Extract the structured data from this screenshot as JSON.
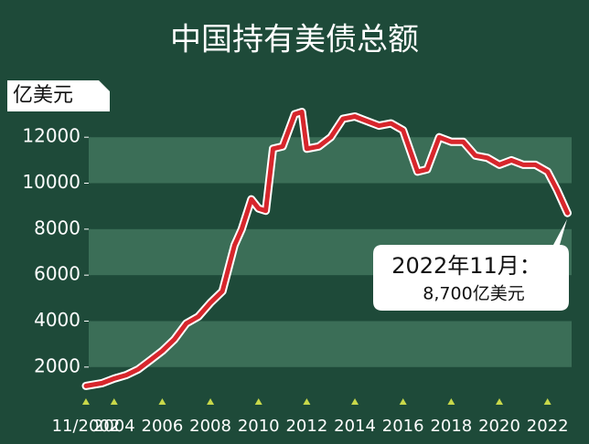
{
  "chart_data": {
    "type": "line",
    "title": "中国持有美债总额",
    "y_label": "亿美元",
    "annotation": {
      "title": "2022年11月：",
      "text": "8,700亿美元"
    },
    "x": [
      2002.83,
      2003.5,
      2004,
      2004.5,
      2005,
      2005.5,
      2006,
      2006.5,
      2007,
      2007.5,
      2008,
      2008.5,
      2009,
      2009.3,
      2009.7,
      2010,
      2010.3,
      2010.6,
      2011,
      2011.5,
      2011.8,
      2012,
      2012.5,
      2013,
      2013.5,
      2014,
      2014.5,
      2015,
      2015.5,
      2016,
      2016.6,
      2017,
      2017.5,
      2018,
      2018.5,
      2019,
      2019.5,
      2020,
      2020.5,
      2021,
      2021.5,
      2022,
      2022.4,
      2022.83
    ],
    "series": [
      {
        "name": "中国持有美债",
        "color": "#d7262c",
        "values": [
          1180,
          1300,
          1500,
          1650,
          1900,
          2300,
          2700,
          3200,
          3900,
          4200,
          4800,
          5300,
          7300,
          8000,
          9300,
          8900,
          8800,
          11500,
          11600,
          13000,
          13100,
          11500,
          11600,
          12000,
          12800,
          12900,
          12700,
          12500,
          12600,
          12300,
          10500,
          10600,
          12000,
          11800,
          11800,
          11200,
          11100,
          10800,
          11000,
          10800,
          10800,
          10500,
          9700,
          8700
        ]
      }
    ],
    "xlim": [
      2002.3,
      2023.0
    ],
    "xticks": [
      {
        "value": 2002.83,
        "label": "11/2002"
      },
      2004,
      2006,
      2008,
      2010,
      2012,
      2014,
      2016,
      2018,
      2020,
      2022
    ],
    "ylim": [
      800,
      13200
    ],
    "yticks": [
      2000,
      4000,
      6000,
      8000,
      10000,
      12000
    ]
  }
}
